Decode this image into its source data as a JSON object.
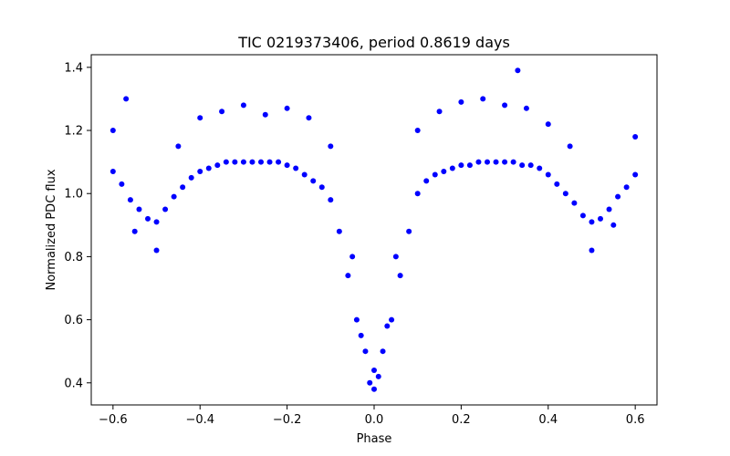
{
  "chart_data": {
    "type": "scatter",
    "title": "TIC 0219373406, period 0.8619 days",
    "xlabel": "Phase",
    "ylabel": "Normalized PDC flux",
    "xlim": [
      -0.65,
      0.65
    ],
    "ylim": [
      0.33,
      1.44
    ],
    "xticks": [
      -0.6,
      -0.4,
      -0.2,
      0.0,
      0.2,
      0.4,
      0.6
    ],
    "xtick_labels": [
      "−0.6",
      "−0.4",
      "−0.2",
      "0.0",
      "0.2",
      "0.4",
      "0.6"
    ],
    "yticks": [
      0.4,
      0.6,
      0.8,
      1.0,
      1.2,
      1.4
    ],
    "ytick_labels": [
      "0.4",
      "0.6",
      "0.8",
      "1.0",
      "1.2",
      "1.4"
    ],
    "grid": false,
    "legend": "none",
    "marker_color": "#0000ff",
    "series": [
      {
        "x": [
          -0.6,
          -0.58,
          -0.56,
          -0.54,
          -0.52,
          -0.5,
          -0.48,
          -0.46,
          -0.44,
          -0.42,
          -0.4,
          -0.38,
          -0.36,
          -0.34,
          -0.32,
          -0.3,
          -0.28,
          -0.26,
          -0.24,
          -0.22,
          -0.2,
          -0.18,
          -0.16,
          -0.14,
          -0.12,
          -0.1,
          -0.08,
          -0.06,
          -0.04,
          -0.02,
          0.0,
          0.02,
          0.04,
          0.06,
          0.08,
          0.1,
          0.12,
          0.14,
          0.16,
          0.18,
          0.2,
          0.22,
          0.24,
          0.26,
          0.28,
          0.3,
          0.32,
          0.34,
          0.36,
          0.38,
          0.4,
          0.42,
          0.44,
          0.46,
          0.48,
          0.5,
          0.52,
          0.54,
          0.56,
          0.58,
          0.6,
          -0.6,
          -0.55,
          -0.5,
          -0.45,
          -0.4,
          -0.35,
          -0.3,
          -0.25,
          -0.2,
          -0.15,
          -0.1,
          -0.05,
          0.0,
          0.05,
          0.1,
          0.15,
          0.2,
          0.25,
          0.3,
          0.35,
          0.4,
          0.45,
          0.5,
          0.55,
          0.6,
          -0.03,
          -0.01,
          0.01,
          0.03,
          -0.57,
          0.33
        ],
        "y": [
          1.07,
          1.03,
          0.98,
          0.95,
          0.92,
          0.91,
          0.95,
          0.99,
          1.02,
          1.05,
          1.07,
          1.08,
          1.09,
          1.1,
          1.1,
          1.1,
          1.1,
          1.1,
          1.1,
          1.1,
          1.09,
          1.08,
          1.06,
          1.04,
          1.02,
          0.98,
          0.88,
          0.74,
          0.6,
          0.5,
          0.44,
          0.5,
          0.6,
          0.74,
          0.88,
          1.0,
          1.04,
          1.06,
          1.07,
          1.08,
          1.09,
          1.09,
          1.1,
          1.1,
          1.1,
          1.1,
          1.1,
          1.09,
          1.09,
          1.08,
          1.06,
          1.03,
          1.0,
          0.97,
          0.93,
          0.91,
          0.92,
          0.95,
          0.99,
          1.02,
          1.06,
          1.2,
          0.88,
          0.82,
          1.15,
          1.24,
          1.26,
          1.28,
          1.25,
          1.27,
          1.24,
          1.15,
          0.8,
          0.38,
          0.8,
          1.2,
          1.26,
          1.29,
          1.3,
          1.28,
          1.27,
          1.22,
          1.15,
          0.82,
          0.9,
          1.18,
          0.55,
          0.4,
          0.42,
          0.58,
          1.3,
          1.39
        ]
      }
    ]
  }
}
